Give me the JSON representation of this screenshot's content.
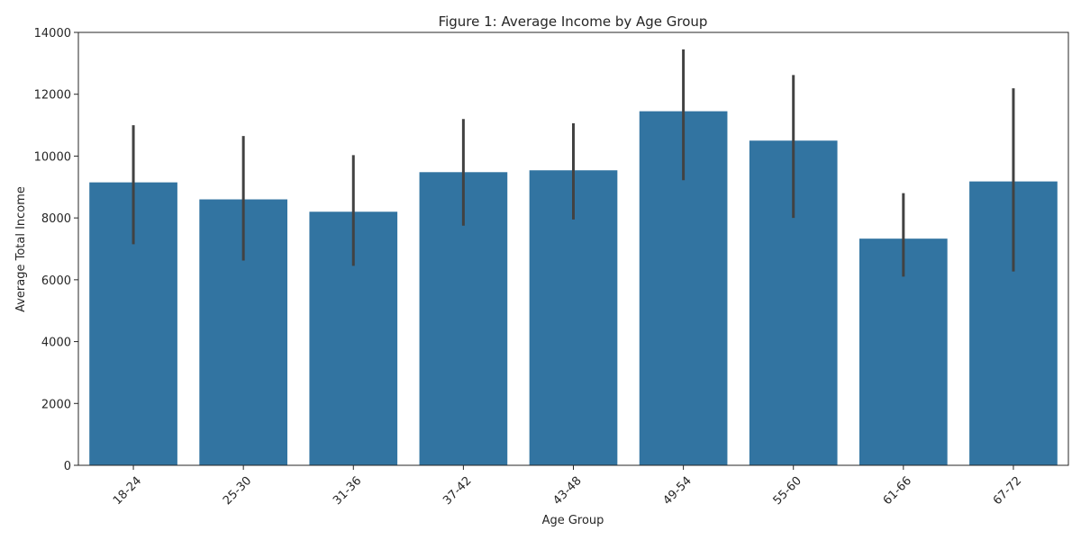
{
  "chart_data": {
    "type": "bar",
    "title": "Figure 1: Average Income by Age Group",
    "xlabel": "Age Group",
    "ylabel": "Average Total Income",
    "categories": [
      "18-24",
      "25-30",
      "31-36",
      "37-42",
      "43-48",
      "49-54",
      "55-60",
      "61-66",
      "67-72"
    ],
    "values": [
      9150,
      8600,
      8200,
      9480,
      9540,
      11450,
      10500,
      7330,
      9180
    ],
    "error_low": [
      7150,
      6620,
      6450,
      7750,
      7950,
      9220,
      8000,
      6100,
      6270
    ],
    "error_high": [
      11000,
      10650,
      10030,
      11200,
      11060,
      13450,
      12620,
      8800,
      12190
    ],
    "ylim": [
      0,
      14000
    ],
    "yticks": [
      0,
      2000,
      4000,
      6000,
      8000,
      10000,
      12000,
      14000
    ],
    "bar_color": "#3274a1",
    "error_color": "#424242",
    "grid": false,
    "legend": "none"
  }
}
